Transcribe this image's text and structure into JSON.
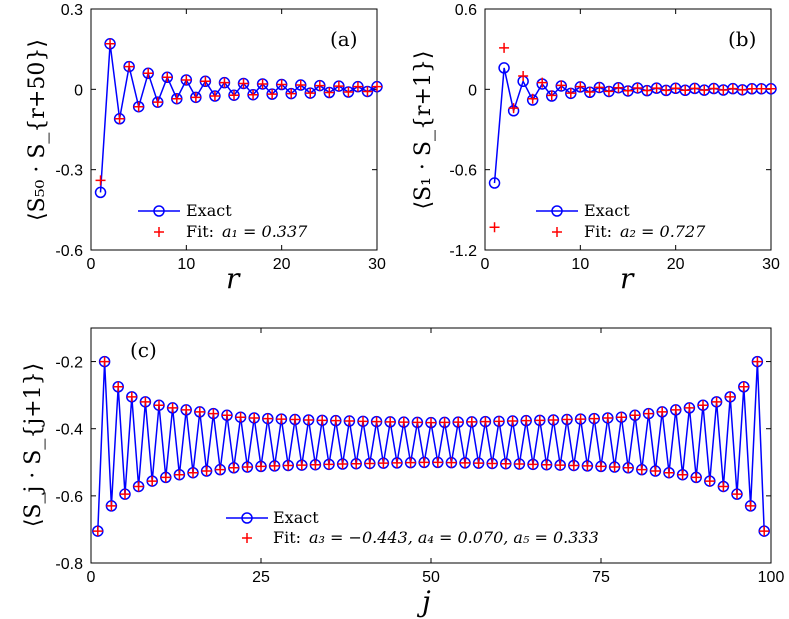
{
  "colors": {
    "exact": "#0000ff",
    "fit": "#ff0000",
    "axis": "#000000"
  },
  "chart_data": [
    {
      "id": "a",
      "type": "line",
      "panel_label": "(a)",
      "xlabel": "r",
      "ylabel": "⟨S₅₀ · S_{r+50}⟩",
      "xlim": [
        0,
        30
      ],
      "ylim": [
        -0.6,
        0.3
      ],
      "xticks": [
        "0",
        "10",
        "20",
        "30"
      ],
      "yticks": [
        "0.3",
        "0",
        "-0.3",
        "-0.6"
      ],
      "xtick_values": [
        0,
        10,
        20,
        30
      ],
      "ytick_values": [
        0.3,
        0,
        -0.3,
        -0.6
      ],
      "legend": {
        "exact_label": "Exact",
        "fit_label": "Fit:",
        "fit_params": "a₁ = 0.337",
        "position": "lower-center"
      },
      "x": [
        1,
        2,
        3,
        4,
        5,
        6,
        7,
        8,
        9,
        10,
        11,
        12,
        13,
        14,
        15,
        16,
        17,
        18,
        19,
        20,
        21,
        22,
        23,
        24,
        25,
        26,
        27,
        28,
        29,
        30
      ],
      "exact": [
        -0.385,
        0.17,
        -0.11,
        0.085,
        -0.065,
        0.06,
        -0.048,
        0.045,
        -0.035,
        0.035,
        -0.03,
        0.03,
        -0.025,
        0.025,
        -0.022,
        0.022,
        -0.02,
        0.02,
        -0.018,
        0.018,
        -0.016,
        0.016,
        -0.014,
        0.014,
        -0.012,
        0.012,
        -0.01,
        0.01,
        -0.008,
        0.01
      ],
      "fit": [
        -0.34,
        0.17,
        -0.11,
        0.085,
        -0.065,
        0.06,
        -0.048,
        0.045,
        -0.035,
        0.035,
        -0.03,
        0.03,
        -0.025,
        0.025,
        -0.022,
        0.022,
        -0.02,
        0.02,
        -0.018,
        0.018,
        -0.016,
        0.016,
        -0.014,
        0.014,
        -0.012,
        0.012,
        -0.01,
        0.01,
        -0.008,
        0.01
      ]
    },
    {
      "id": "b",
      "type": "line",
      "panel_label": "(b)",
      "xlabel": "r",
      "ylabel": "⟨S₁ · S_{r+1}⟩",
      "xlim": [
        0,
        30
      ],
      "ylim": [
        -1.2,
        0.6
      ],
      "xticks": [
        "0",
        "10",
        "20",
        "30"
      ],
      "yticks": [
        "0.6",
        "0",
        "-0.6",
        "-1.2"
      ],
      "xtick_values": [
        0,
        10,
        20,
        30
      ],
      "ytick_values": [
        0.6,
        0,
        -0.6,
        -1.2
      ],
      "legend": {
        "exact_label": "Exact",
        "fit_label": "Fit:",
        "fit_params": "a₂ = 0.727",
        "position": "lower-center"
      },
      "x": [
        1,
        2,
        3,
        4,
        5,
        6,
        7,
        8,
        9,
        10,
        11,
        12,
        13,
        14,
        15,
        16,
        17,
        18,
        19,
        20,
        21,
        22,
        23,
        24,
        25,
        26,
        27,
        28,
        29,
        30
      ],
      "exact": [
        -0.7,
        0.16,
        -0.16,
        0.06,
        -0.08,
        0.04,
        -0.05,
        0.025,
        -0.03,
        0.018,
        -0.022,
        0.014,
        -0.016,
        0.012,
        -0.012,
        0.01,
        -0.01,
        0.009,
        -0.008,
        0.008,
        -0.007,
        0.007,
        -0.006,
        0.006,
        -0.005,
        0.005,
        -0.004,
        0.004,
        0.004,
        0.004
      ],
      "fit": [
        -1.03,
        0.31,
        -0.14,
        0.1,
        -0.07,
        0.05,
        -0.045,
        0.03,
        -0.028,
        0.02,
        -0.02,
        0.015,
        -0.015,
        0.012,
        -0.011,
        0.01,
        -0.009,
        0.009,
        -0.008,
        0.008,
        -0.007,
        0.007,
        -0.006,
        0.006,
        -0.005,
        0.005,
        -0.004,
        0.004,
        0.004,
        0.004
      ]
    },
    {
      "id": "c",
      "type": "line",
      "panel_label": "(c)",
      "xlabel": "j",
      "ylabel": "⟨S_j · S_{j+1}⟩",
      "xlim": [
        0,
        100
      ],
      "ylim": [
        -0.8,
        -0.1
      ],
      "xticks": [
        "0",
        "25",
        "50",
        "75",
        "100"
      ],
      "yticks": [
        "-0.2",
        "-0.4",
        "-0.6",
        "-0.8"
      ],
      "xtick_values": [
        0,
        25,
        50,
        75,
        100
      ],
      "ytick_values": [
        -0.2,
        -0.4,
        -0.6,
        -0.8
      ],
      "legend": {
        "exact_label": "Exact",
        "fit_label": "Fit:",
        "fit_params": "a₃ = −0.443, a₄ = 0.070, a₅ = 0.333",
        "position": "lower-center"
      },
      "series_rule": "j = 1..99; even j: upper branch, odd j: lower branch (symmetric about j = 50)",
      "x_range": [
        1,
        99
      ],
      "upper_branch": {
        "j": [
          2,
          4,
          6,
          8,
          10,
          12,
          14,
          16,
          18,
          20
        ],
        "values": [
          -0.2,
          -0.275,
          -0.305,
          -0.32,
          -0.33,
          -0.338,
          -0.344,
          -0.35,
          -0.355,
          -0.36
        ],
        "center": -0.382
      },
      "lower_branch": {
        "j": [
          1,
          3,
          5,
          7,
          9,
          11,
          13,
          15,
          17,
          19
        ],
        "values": [
          -0.705,
          -0.63,
          -0.595,
          -0.572,
          -0.556,
          -0.545,
          -0.537,
          -0.531,
          -0.526,
          -0.522
        ],
        "center": -0.5
      }
    }
  ]
}
